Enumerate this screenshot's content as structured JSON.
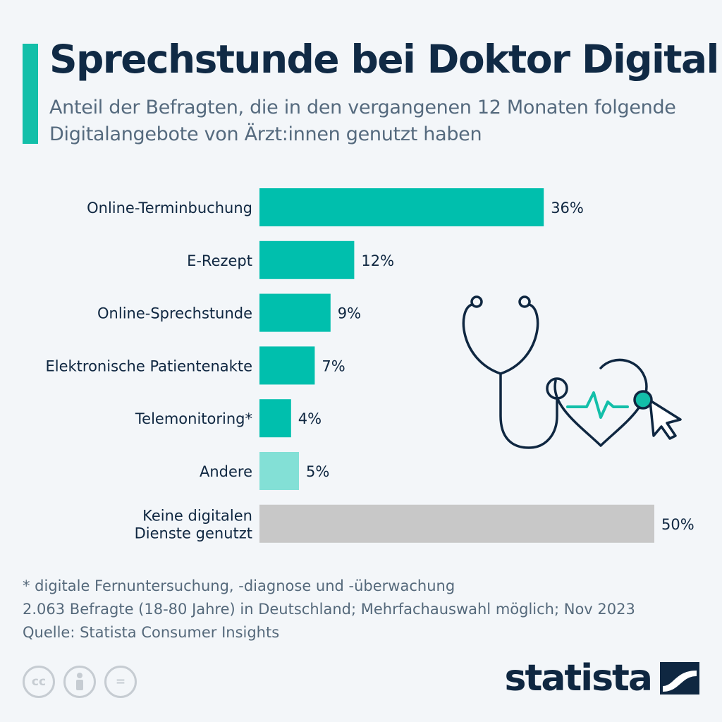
{
  "header": {
    "title": "Sprechstunde bei Doktor Digital",
    "subtitle": "Anteil der Befragten, die in den vergangenen 12 Monaten folgende Digitalangebote von Ärzt:innen genutzt haben"
  },
  "chart_data": {
    "type": "bar",
    "orientation": "horizontal",
    "categories": [
      [
        "Online-Terminbuchung"
      ],
      [
        "E-Rezept"
      ],
      [
        "Online-Sprechstunde"
      ],
      [
        "Elektronische Patientenakte"
      ],
      [
        "Telemonitoring*"
      ],
      [
        "Andere"
      ],
      [
        "Keine digitalen",
        "Dienste genutzt"
      ]
    ],
    "values": [
      36,
      12,
      9,
      7,
      4,
      5,
      50
    ],
    "value_labels": [
      "36%",
      "12%",
      "9%",
      "7%",
      "4%",
      "5%",
      "50%"
    ],
    "unit": "%",
    "xlim": [
      0,
      50
    ],
    "grid": false,
    "colors": [
      "#00bfad",
      "#00bfad",
      "#00bfad",
      "#00bfad",
      "#00bfad",
      "#83e0d6",
      "#c8c8c8"
    ]
  },
  "footnotes": {
    "note": "* digitale Fernuntersuchung, -diagnose und -überwachung",
    "survey": "2.063 Befragte (18-80 Jahre) in Deutschland; Mehrfachauswahl möglich; Nov 2023",
    "source": "Quelle: Statista Consumer Insights"
  },
  "license_icons": [
    {
      "name": "cc-icon",
      "glyph": "cc"
    },
    {
      "name": "attribution-icon",
      "glyph": ""
    },
    {
      "name": "no-derivatives-icon",
      "glyph": "="
    }
  ],
  "logo": {
    "text": "statista"
  },
  "illustration": {
    "name": "stethoscope-heart-cursor",
    "colors": {
      "stroke": "#0f2741",
      "accent": "#13bfa9"
    }
  }
}
